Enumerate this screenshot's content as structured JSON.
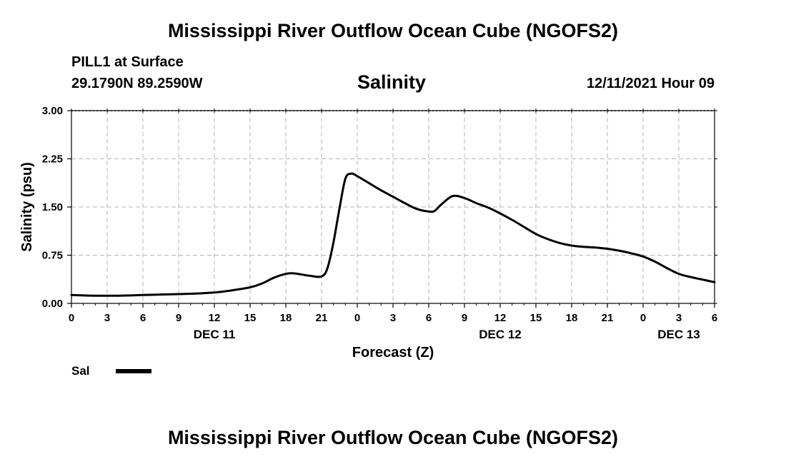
{
  "header": {
    "title": "Mississippi River Outflow Ocean Cube (NGOFS2)",
    "station": "PILL1 at Surface",
    "coords": "29.1790N  89.2590W",
    "forecast_time": "12/11/2021 Hour 09"
  },
  "footer": {
    "title": "Mississippi River Outflow Ocean Cube (NGOFS2)"
  },
  "chart_data": {
    "type": "line",
    "title": "Salinity",
    "xlabel": "Forecast (Z)",
    "ylabel": "Salinity (psu)",
    "xlim": [
      0,
      54
    ],
    "ylim": [
      0,
      3
    ],
    "grid": true,
    "x_ticks": [
      0,
      3,
      6,
      9,
      12,
      15,
      18,
      21,
      24,
      27,
      30,
      33,
      36,
      39,
      42,
      45,
      48,
      51,
      54
    ],
    "x_tick_labels": [
      "0",
      "3",
      "6",
      "9",
      "12",
      "15",
      "18",
      "21",
      "0",
      "3",
      "6",
      "9",
      "12",
      "15",
      "18",
      "21",
      "0",
      "3",
      "6"
    ],
    "date_labels": [
      {
        "x": 12,
        "label": "DEC 11"
      },
      {
        "x": 36,
        "label": "DEC 12"
      },
      {
        "x": 51,
        "label": "DEC 13"
      }
    ],
    "y_ticks": [
      0,
      0.75,
      1.5,
      2.25,
      3
    ],
    "y_tick_labels": [
      "0.00",
      "0.75",
      "1.50",
      "2.25",
      "3.00"
    ],
    "legend": {
      "position": "bottom-left",
      "label": "Sal"
    },
    "series": [
      {
        "name": "Sal",
        "color": "#000000",
        "x": [
          0,
          2,
          4,
          6,
          8,
          10,
          12,
          13,
          15,
          16,
          17,
          18,
          18.5,
          19,
          20,
          21,
          21.5,
          22,
          22.5,
          23,
          23.5,
          24,
          25,
          26,
          27,
          28,
          29,
          30,
          30.5,
          31,
          32,
          33,
          34,
          35,
          36,
          37,
          38,
          39,
          40,
          41,
          42,
          43,
          44,
          45,
          46,
          47,
          48,
          49,
          50,
          51,
          52,
          53,
          54
        ],
        "values": [
          0.13,
          0.12,
          0.12,
          0.13,
          0.14,
          0.15,
          0.17,
          0.19,
          0.25,
          0.31,
          0.4,
          0.46,
          0.47,
          0.46,
          0.43,
          0.42,
          0.55,
          0.95,
          1.47,
          1.94,
          2.02,
          1.98,
          1.87,
          1.76,
          1.66,
          1.56,
          1.47,
          1.43,
          1.44,
          1.53,
          1.67,
          1.64,
          1.56,
          1.49,
          1.4,
          1.3,
          1.19,
          1.08,
          1.0,
          0.94,
          0.9,
          0.88,
          0.87,
          0.85,
          0.82,
          0.78,
          0.73,
          0.65,
          0.55,
          0.46,
          0.41,
          0.37,
          0.33
        ]
      }
    ]
  }
}
